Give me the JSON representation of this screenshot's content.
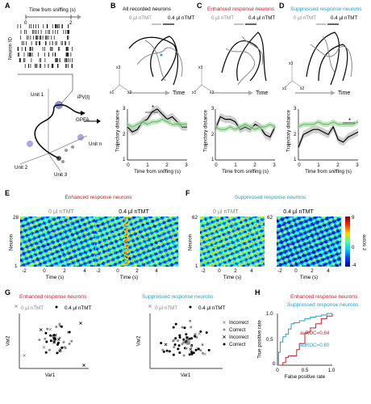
{
  "panels": {
    "A": {
      "letter": "A",
      "time_axis": "Time from sniffing (s)",
      "tick0": "0",
      "tick2": "2",
      "neuron_id": "Neuron ID",
      "unit1": "Unit 1",
      "unit2": "Unit 2",
      "unit3": "Unit 3",
      "unitn": "Unit n",
      "ipv": "iPV(t)",
      "gpfa": "GPFA"
    },
    "B": {
      "letter": "B",
      "title": "All recorded neurons"
    },
    "C": {
      "letter": "C",
      "title": "Enhanced response neurons"
    },
    "D": {
      "letter": "D",
      "title": "Suppressed response neurons"
    },
    "E": {
      "letter": "E",
      "title": "Enhanced response neurons",
      "left_label": "0 μl nTMT",
      "right_label": "0.4 μl nTMT",
      "ylabel": "Neuron",
      "ymax": "28",
      "ymin": "1",
      "xlabel": "Time (s)"
    },
    "F": {
      "letter": "F",
      "title": "Suppressed response neurons",
      "left_label": "0 μl nTMT",
      "right_label": "0.4 μl nTMT",
      "ylabel": "Neuron",
      "ymax": "62",
      "ymin": "1",
      "xlabel": "Time (s)",
      "cbar_label": "z score",
      "cbar_max": "9",
      "cbar_mid": "0",
      "cbar_min": "-4"
    },
    "G": {
      "letter": "G",
      "left_title": "Enhanced response neurons",
      "right_title": "Suppressed response neurons",
      "leg_0": "0 μl nTMT",
      "leg_04": "0.4 μl nTMT",
      "xlabel": "Var1",
      "ylabel": "Var2",
      "key_incorrect_gray": "Incorrect",
      "key_correct_gray": "Correct",
      "key_incorrect_black": "Incorrect",
      "key_correct_black": "Correct"
    },
    "H": {
      "letter": "H",
      "title_enh": "Enhanced response neurons",
      "title_sup": "Suppressed response neurons",
      "auroc_enh": "auROC=0.64",
      "auroc_sup": "auROC=0.80",
      "xlabel": "False positive rate",
      "ylabel": "True positive rate",
      "x0": "0",
      "x05": "0.5",
      "x1": "1.0",
      "y0": "0",
      "y05": "0.5",
      "y1": "1.0"
    }
  },
  "common": {
    "leg_0": "0 μl nTMT",
    "leg_04": "0.4 μl nTMT",
    "time_word": "Time",
    "traj_ylabel": "Trajectory distance",
    "traj_xlabel": "Time from sniffing (s)",
    "y3": "3",
    "y2": "2",
    "y1": "1",
    "x0": "0",
    "x1": "1",
    "x2": "2",
    "x3": "3",
    "t_m2": "-2",
    "t_0": "0",
    "t_2": "2",
    "t_4": "4",
    "star": "*",
    "ax_x1": "x1",
    "ax_x2": "x2",
    "ax_x3": "x3"
  },
  "chart_data": [
    {
      "type": "line",
      "title": "All recorded neurons",
      "xlabel": "Time from sniffing (s)",
      "ylabel": "Trajectory distance",
      "ylim": [
        1,
        3
      ],
      "xlim": [
        0,
        3
      ],
      "x": [
        0,
        0.25,
        0.5,
        0.75,
        1,
        1.25,
        1.5,
        1.75,
        2,
        2.25,
        2.5,
        2.75,
        3
      ],
      "series": [
        {
          "name": "0.4 μl nTMT",
          "values": [
            2.3,
            2.1,
            2.2,
            2.5,
            2.6,
            2.9,
            3.0,
            2.8,
            2.6,
            2.7,
            2.5,
            2.3,
            2.3
          ]
        },
        {
          "name": "0 μl nTMT",
          "values": [
            2.4,
            2.3,
            2.4,
            2.5,
            2.4,
            2.5,
            2.5,
            2.6,
            2.5,
            2.4,
            2.4,
            2.4,
            2.4
          ]
        }
      ]
    },
    {
      "type": "line",
      "title": "Enhanced response neurons",
      "xlabel": "Time from sniffing (s)",
      "ylabel": "Trajectory distance",
      "ylim": [
        1,
        3
      ],
      "xlim": [
        0,
        3
      ],
      "x": [
        0,
        0.25,
        0.5,
        0.75,
        1,
        1.25,
        1.5,
        1.75,
        2,
        2.25,
        2.5,
        2.75,
        3
      ],
      "series": [
        {
          "name": "0.4 μl nTMT",
          "values": [
            2.2,
            2.7,
            2.6,
            2.6,
            2.5,
            2.2,
            2.3,
            2.2,
            2.4,
            2.3,
            2.0,
            1.9,
            2.3
          ]
        },
        {
          "name": "0 μl nTMT",
          "values": [
            2.3,
            2.2,
            2.2,
            2.3,
            2.2,
            2.3,
            2.4,
            2.3,
            2.2,
            2.3,
            2.3,
            2.4,
            2.3
          ]
        }
      ]
    },
    {
      "type": "line",
      "title": "Suppressed response neurons",
      "xlabel": "Time from sniffing (s)",
      "ylabel": "Trajectory distance",
      "ylim": [
        1,
        3
      ],
      "xlim": [
        0,
        3
      ],
      "x": [
        0,
        0.25,
        0.5,
        0.75,
        1,
        1.25,
        1.5,
        1.75,
        2,
        2.25,
        2.5,
        2.75,
        3
      ],
      "series": [
        {
          "name": "0.4 μl nTMT",
          "values": [
            1.5,
            2.0,
            2.1,
            2.2,
            2.2,
            2.1,
            2.0,
            2.3,
            1.8,
            1.7,
            1.9,
            2.0,
            2.1
          ]
        },
        {
          "name": "0 μl nTMT",
          "values": [
            2.3,
            2.4,
            2.4,
            2.4,
            2.5,
            2.4,
            2.4,
            2.5,
            2.4,
            2.4,
            2.4,
            2.4,
            2.5
          ]
        }
      ]
    },
    {
      "type": "line",
      "title": "Enhanced response neurons / Suppressed response neurons",
      "xlabel": "False positive rate",
      "ylabel": "True positive rate",
      "xlim": [
        0,
        1
      ],
      "ylim": [
        0,
        1
      ],
      "series": [
        {
          "name": "Enhanced response neurons",
          "auroc": 0.64,
          "x": [
            0,
            0.05,
            0.1,
            0.15,
            0.2,
            0.3,
            0.35,
            0.4,
            0.45,
            0.5,
            0.55,
            0.6,
            0.7,
            0.8,
            0.9,
            1.0
          ],
          "values": [
            0,
            0,
            0.05,
            0.15,
            0.18,
            0.18,
            0.3,
            0.42,
            0.42,
            0.62,
            0.64,
            0.72,
            0.8,
            0.9,
            0.95,
            1.0
          ]
        },
        {
          "name": "Suppressed response neurons",
          "auroc": 0.8,
          "x": [
            0,
            0.02,
            0.05,
            0.1,
            0.15,
            0.2,
            0.25,
            0.3,
            0.4,
            0.5,
            0.6,
            0.7,
            0.8,
            0.9,
            1.0
          ],
          "values": [
            0,
            0.25,
            0.45,
            0.55,
            0.6,
            0.7,
            0.8,
            0.82,
            0.86,
            0.9,
            0.93,
            0.95,
            0.97,
            1.0,
            1.0
          ]
        }
      ]
    }
  ]
}
